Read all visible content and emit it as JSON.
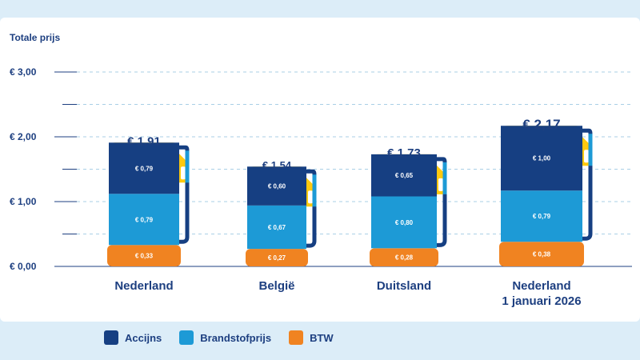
{
  "chart_data": {
    "type": "bar",
    "stacked": true,
    "ylabel": "Totale prijs",
    "ylim": [
      0,
      3.2
    ],
    "yticks": [
      "€ 0,00",
      "€ 1,00",
      "€ 2,00",
      "€ 3,00"
    ],
    "ytick_values": [
      0,
      1,
      2,
      3
    ],
    "grid": true,
    "legend_position": "bottom-left",
    "categories": [
      "Nederland",
      "België",
      "Duitsland",
      "Nederland 1 januari 2026"
    ],
    "category_lines": [
      [
        "Nederland"
      ],
      [
        "België"
      ],
      [
        "Duitsland"
      ],
      [
        "Nederland",
        "1 januari 2026"
      ]
    ],
    "totals": [
      1.91,
      1.54,
      1.73,
      2.17
    ],
    "total_labels": [
      "€ 1,91",
      "€ 1,54",
      "€ 1,73",
      "€ 2,17"
    ],
    "series": [
      {
        "name": "BTW",
        "color": "#f08321",
        "values": [
          0.33,
          0.27,
          0.28,
          0.38
        ],
        "labels": [
          "€ 0,33",
          "€ 0,27",
          "€ 0,28",
          "€ 0,38"
        ]
      },
      {
        "name": "Brandstofprijs",
        "color": "#1d9ad6",
        "values": [
          0.79,
          0.67,
          0.8,
          0.79
        ],
        "labels": [
          "€ 0,79",
          "€ 0,67",
          "€ 0,80",
          "€ 0,79"
        ]
      },
      {
        "name": "Accijns",
        "color": "#163f82",
        "values": [
          0.79,
          0.6,
          0.65,
          1.0
        ],
        "labels": [
          "€ 0,79",
          "€ 0,60",
          "€ 0,65",
          "€ 1,00"
        ]
      }
    ],
    "top_color": "#ffc90e"
  },
  "legend": [
    {
      "label": "Accijns",
      "color": "#163f82"
    },
    {
      "label": "Brandstofprijs",
      "color": "#1d9ad6"
    },
    {
      "label": "BTW",
      "color": "#f08321"
    }
  ]
}
